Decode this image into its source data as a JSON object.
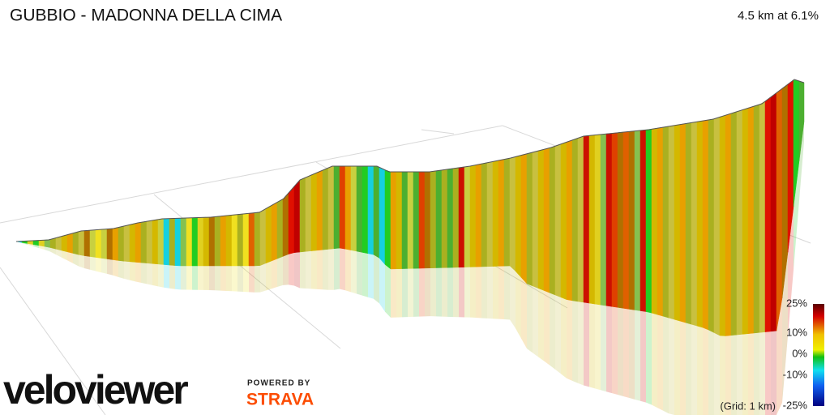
{
  "header": {
    "title": "GUBBIO - MADONNA DELLA CIMA",
    "stats": "4.5 km at 6.1%"
  },
  "legend": {
    "labels": [
      "25%",
      "10%",
      "0%",
      "-10%",
      "-25%"
    ],
    "grid_note": "(Grid: 1 km)"
  },
  "branding": {
    "logo": "veloviewer",
    "powered_by": "POWERED BY",
    "partner": "STRAVA"
  }
}
